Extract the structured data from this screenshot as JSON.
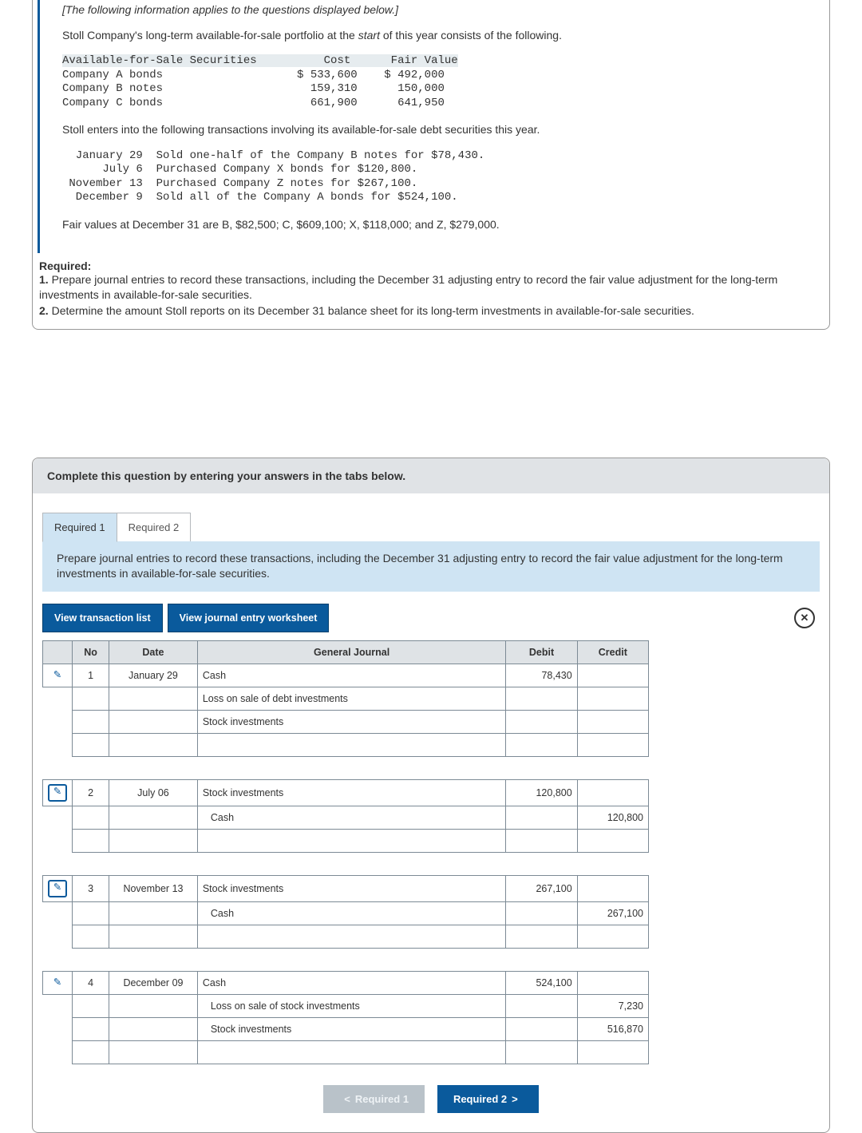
{
  "problem": {
    "preface_italic": "[The following information applies to the questions displayed below.]",
    "intro": "Stoll Company's long-term available-for-sale portfolio at the ",
    "intro_em": "start",
    "intro_tail": " of this year consists of the following.",
    "afs_table": {
      "header": "Available-for-Sale Securities          Cost      Fair Value",
      "rows": [
        "Company A bonds                    $ 533,600    $ 492,000",
        "Company B notes                      159,310      150,000",
        "Company C bonds                      661,900      641,950"
      ]
    },
    "trans_lead": "Stoll enters into the following transactions involving its available-for-sale debt securities this year.",
    "trans_lines": [
      "  January 29  Sold one-half of the Company B notes for $78,430.",
      "      July 6  Purchased Company X bonds for $120,800.",
      " November 13  Purchased Company Z notes for $267,100.",
      "  December 9  Sold all of the Company A bonds for $524,100."
    ],
    "fairvalue_line": "Fair values at December 31 are B, $82,500; C, $609,100; X, $118,000; and Z, $279,000."
  },
  "required": {
    "title": "Required:",
    "item1_num": "1.",
    "item1": " Prepare journal entries to record these transactions, including the December 31 adjusting entry to record the fair value adjustment for the long-term investments in available-for-sale securities.",
    "item2_num": "2.",
    "item2": " Determine the amount Stoll reports on its December 31 balance sheet for its long-term investments in available-for-sale securities."
  },
  "answer": {
    "instruction": "Complete this question by entering your answers in the tabs below.",
    "tab1": "Required 1",
    "tab2": "Required 2",
    "tab_desc": "Prepare journal entries to record these transactions, including the December 31 adjusting entry to record the fair value adjustment for the long-term investments in available-for-sale securities.",
    "view_list": "View transaction list",
    "view_ws": "View journal entry worksheet",
    "headers": {
      "no": "No",
      "date": "Date",
      "gj": "General Journal",
      "debit": "Debit",
      "credit": "Credit"
    },
    "entries": [
      {
        "no": "1",
        "date": "January 29",
        "lines": [
          {
            "acc": "Cash",
            "debit": "78,430",
            "credit": "",
            "indent": 0
          },
          {
            "acc": "Loss on sale of debt investments",
            "debit": "",
            "credit": "",
            "indent": 0
          },
          {
            "acc": "Stock investments",
            "debit": "",
            "credit": "",
            "indent": 0
          },
          {
            "acc": "",
            "debit": "",
            "credit": "",
            "indent": 0
          }
        ],
        "edit_outline": false
      },
      {
        "no": "2",
        "date": "July 06",
        "lines": [
          {
            "acc": "Stock investments",
            "debit": "120,800",
            "credit": "",
            "indent": 0
          },
          {
            "acc": "Cash",
            "debit": "",
            "credit": "120,800",
            "indent": 1
          },
          {
            "acc": "",
            "debit": "",
            "credit": "",
            "indent": 0
          }
        ],
        "edit_outline": true
      },
      {
        "no": "3",
        "date": "November 13",
        "lines": [
          {
            "acc": "Stock investments",
            "debit": "267,100",
            "credit": "",
            "indent": 0
          },
          {
            "acc": "Cash",
            "debit": "",
            "credit": "267,100",
            "indent": 1
          },
          {
            "acc": "",
            "debit": "",
            "credit": "",
            "indent": 0
          }
        ],
        "edit_outline": true
      },
      {
        "no": "4",
        "date": "December 09",
        "lines": [
          {
            "acc": "Cash",
            "debit": "524,100",
            "credit": "",
            "indent": 0
          },
          {
            "acc": "Loss on sale of stock investments",
            "debit": "",
            "credit": "7,230",
            "indent": 1
          },
          {
            "acc": "Stock investments",
            "debit": "",
            "credit": "516,870",
            "indent": 1
          },
          {
            "acc": "",
            "debit": "",
            "credit": "",
            "indent": 0
          }
        ],
        "edit_outline": false
      }
    ],
    "nav_prev": "Required 1",
    "nav_next": "Required 2"
  }
}
